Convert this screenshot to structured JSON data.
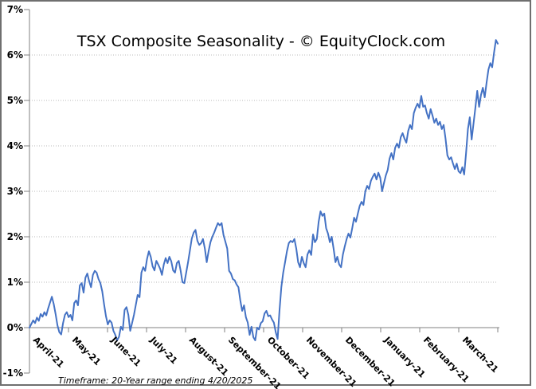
{
  "chart_data": {
    "type": "line",
    "title": "TSX Composite Seasonality - © EquityClock.com",
    "footnote": "Timeframe: 20-Year range ending 4/20/2025",
    "categories": [
      "April-21",
      "May-21",
      "June-21",
      "July-21",
      "August-21",
      "September-21",
      "October-21",
      "November-21",
      "December-21",
      "January-21",
      "February-21",
      "March-21"
    ],
    "y_tick_labels": [
      "7%",
      "6%",
      "5%",
      "4%",
      "3%",
      "2%",
      "1%",
      "0%",
      "-1%"
    ],
    "ylim": [
      -1,
      7
    ],
    "ylabel": "",
    "xlabel": "",
    "grid": "horizontal-dotted",
    "legend_position": "none",
    "y_gridlines_pct": [
      6,
      5,
      4,
      3,
      2,
      1
    ],
    "values": [
      0.0,
      0.08,
      0.16,
      0.1,
      0.22,
      0.15,
      0.3,
      0.24,
      0.34,
      0.27,
      0.42,
      0.55,
      0.68,
      0.52,
      0.3,
      0.05,
      -0.1,
      -0.15,
      0.1,
      0.28,
      0.34,
      0.23,
      0.28,
      0.16,
      0.54,
      0.6,
      0.49,
      0.93,
      0.98,
      0.77,
      1.1,
      1.19,
      1.02,
      0.89,
      1.16,
      1.25,
      1.21,
      1.07,
      0.98,
      0.8,
      0.51,
      0.25,
      0.07,
      0.16,
      0.11,
      -0.07,
      -0.16,
      -0.28,
      -0.2,
      0.02,
      -0.05,
      0.39,
      0.45,
      0.28,
      -0.07,
      0.1,
      0.28,
      0.5,
      0.72,
      0.67,
      1.21,
      1.33,
      1.25,
      1.51,
      1.68,
      1.56,
      1.35,
      1.26,
      1.47,
      1.39,
      1.3,
      1.16,
      1.39,
      1.53,
      1.42,
      1.56,
      1.46,
      1.26,
      1.21,
      1.42,
      1.47,
      1.26,
      1.0,
      0.98,
      1.21,
      1.44,
      1.7,
      1.96,
      2.09,
      2.15,
      1.91,
      1.82,
      1.86,
      1.95,
      1.74,
      1.44,
      1.68,
      1.88,
      2.0,
      2.09,
      2.2,
      2.3,
      2.25,
      2.3,
      2.04,
      1.89,
      1.74,
      1.25,
      1.19,
      1.07,
      1.04,
      0.95,
      0.89,
      0.6,
      0.37,
      0.49,
      0.23,
      0.11,
      -0.16,
      0.02,
      -0.21,
      -0.28,
      0.0,
      -0.04,
      0.1,
      0.14,
      0.31,
      0.37,
      0.25,
      0.27,
      0.18,
      0.11,
      -0.1,
      -0.25,
      0.37,
      0.89,
      1.21,
      1.44,
      1.68,
      1.86,
      1.91,
      1.88,
      1.95,
      1.74,
      1.44,
      1.33,
      1.56,
      1.42,
      1.33,
      1.61,
      1.7,
      1.6,
      2.05,
      1.88,
      1.95,
      2.33,
      2.56,
      2.46,
      2.51,
      2.19,
      2.07,
      1.88,
      2.0,
      1.74,
      1.44,
      1.56,
      1.39,
      1.33,
      1.61,
      1.79,
      1.95,
      2.07,
      1.98,
      2.19,
      2.42,
      2.33,
      2.51,
      2.68,
      2.77,
      2.7,
      3.0,
      3.12,
      3.05,
      3.23,
      3.32,
      3.39,
      3.26,
      3.41,
      3.3,
      3.0,
      3.18,
      3.35,
      3.47,
      3.72,
      3.84,
      3.7,
      3.96,
      4.05,
      3.96,
      4.19,
      4.28,
      4.16,
      4.07,
      4.33,
      4.46,
      4.37,
      4.72,
      4.84,
      4.93,
      4.84,
      5.1,
      4.86,
      4.89,
      4.72,
      4.6,
      4.81,
      4.67,
      4.51,
      4.6,
      4.46,
      4.53,
      4.37,
      4.46,
      4.16,
      3.79,
      3.7,
      3.75,
      3.61,
      3.49,
      3.61,
      3.44,
      3.4,
      3.53,
      3.37,
      3.84,
      4.37,
      4.63,
      4.14,
      4.49,
      4.84,
      5.21,
      4.86,
      5.12,
      5.28,
      5.07,
      5.39,
      5.68,
      5.82,
      5.73,
      6.05,
      6.33,
      6.25
    ],
    "colors": {
      "line": "#4472C4",
      "axis": "#808080",
      "grid": "#b8b8b8",
      "text": "#000000",
      "border": "#6f6f6f",
      "background": "#ffffff"
    }
  }
}
